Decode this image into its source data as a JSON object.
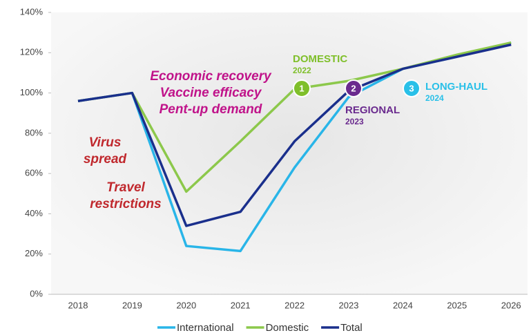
{
  "chart_data": {
    "type": "line",
    "categories": [
      "2018",
      "2019",
      "2020",
      "2021",
      "2022",
      "2023",
      "2024",
      "2025",
      "2026"
    ],
    "series": [
      {
        "name": "International",
        "color": "#29b5e8",
        "values": [
          96,
          100,
          24,
          21.5,
          63,
          98,
          112,
          118,
          125
        ]
      },
      {
        "name": "Domestic",
        "color": "#8cc84b",
        "values": [
          96,
          100,
          51,
          76,
          102,
          106,
          112,
          119,
          125
        ]
      },
      {
        "name": "Total",
        "color": "#1a2f8c",
        "values": [
          96,
          100,
          34,
          41,
          76,
          101,
          112,
          118,
          124
        ]
      }
    ],
    "ylim": [
      0,
      140
    ],
    "yticks": [
      {
        "value": 0,
        "label": "0%"
      },
      {
        "value": 20,
        "label": "20%"
      },
      {
        "value": 40,
        "label": "40%"
      },
      {
        "value": 60,
        "label": "60%"
      },
      {
        "value": 80,
        "label": "80%"
      },
      {
        "value": 100,
        "label": "100%"
      },
      {
        "value": 120,
        "label": "120%"
      },
      {
        "value": 140,
        "label": "140%"
      }
    ],
    "annotations": [
      {
        "lines": [
          "Economic recovery",
          "Vaccine efficacy",
          "Pent-up demand"
        ],
        "color": "#c0138a"
      },
      {
        "lines": [
          "Virus",
          "spread"
        ],
        "color": "#c0282d"
      },
      {
        "lines": [
          "Travel",
          "restrictions"
        ],
        "color": "#c0282d"
      }
    ],
    "milestones": [
      {
        "number": "1",
        "label": "DOMESTIC",
        "year": "2022",
        "color": "#7fbf2a"
      },
      {
        "number": "2",
        "label": "REGIONAL",
        "year": "2023",
        "color": "#6a2a8e"
      },
      {
        "number": "3",
        "label": "LONG-HAUL",
        "year": "2024",
        "color": "#29c0e8"
      }
    ]
  }
}
